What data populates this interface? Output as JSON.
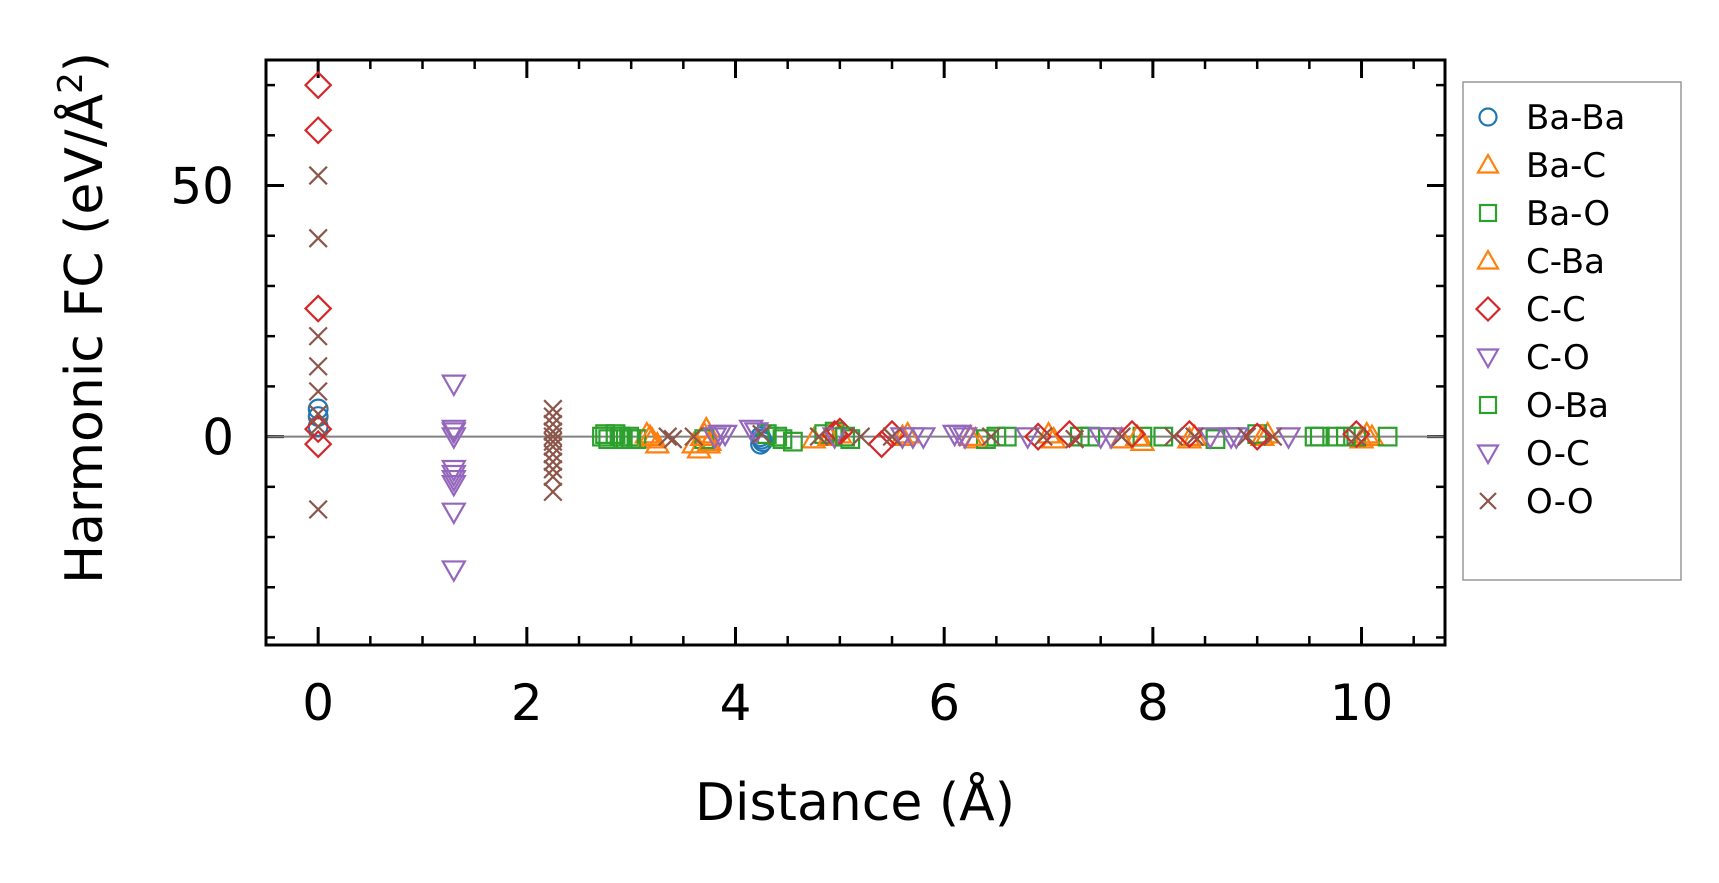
{
  "chart_data": {
    "type": "scatter",
    "xlabel": "Distance (Å)",
    "ylabel_main": "Harmonic FC (eV/Å",
    "ylabel_sup": "2",
    "ylabel_close": ")",
    "xlim": [
      -0.5,
      10.8
    ],
    "ylim": [
      -41.5,
      75
    ],
    "xticks": [
      0,
      2,
      4,
      6,
      8,
      10
    ],
    "xtick_labels": [
      "0",
      "2",
      "4",
      "6",
      "8",
      "10"
    ],
    "yticks": [
      0,
      50
    ],
    "ytick_labels": [
      "0",
      "50"
    ],
    "x_minor_step": 0.5,
    "y_minor_step": 10,
    "zero_line": true,
    "legend_position": "outside-right",
    "series": [
      {
        "name": "Ba-Ba",
        "marker": "circle",
        "color": "#1f77b4",
        "x": [
          0,
          0,
          0,
          4.24,
          4.25,
          4.26,
          4.24
        ],
        "y": [
          5.5,
          4.0,
          2.0,
          0.0,
          -0.5,
          -1.0,
          -1.5
        ]
      },
      {
        "name": "Ba-C",
        "marker": "triangle-up",
        "color": "#ff7f0e",
        "x": [
          3.15,
          3.2,
          3.25,
          3.6,
          3.65,
          3.7,
          3.72,
          3.75,
          4.75,
          5.0,
          5.6,
          6.3,
          7.0,
          7.7,
          7.9,
          8.4,
          9.1,
          10.0,
          10.1
        ],
        "y": [
          0.5,
          -0.5,
          -1.5,
          -1.5,
          -2.5,
          0.5,
          1.5,
          -1.0,
          -0.5,
          0.5,
          0.0,
          -0.5,
          0.5,
          -0.5,
          -1.0,
          0.0,
          0.5,
          -0.5,
          0.0
        ]
      },
      {
        "name": "Ba-O",
        "marker": "square",
        "color": "#2ca02c",
        "x": [
          2.72,
          2.78,
          2.85,
          2.92,
          2.98,
          3.05,
          3.7,
          4.3,
          4.45,
          4.55,
          4.85,
          4.95,
          5.1,
          6.4,
          6.6,
          7.3,
          7.9,
          8.6,
          9.0,
          9.55,
          9.75,
          9.95,
          10.25
        ],
        "y": [
          0.0,
          -0.5,
          0.5,
          -0.5,
          0.0,
          -0.5,
          -0.5,
          0.5,
          -0.5,
          -1.0,
          0.5,
          1.0,
          -0.5,
          -0.5,
          0.0,
          0.0,
          0.0,
          -0.5,
          0.5,
          0.0,
          0.0,
          0.0,
          0.0
        ]
      },
      {
        "name": "C-Ba",
        "marker": "triangle-up",
        "color": "#ff7f0e",
        "x": [
          3.18,
          3.68,
          3.74,
          4.9,
          5.65,
          6.25,
          7.05,
          7.85,
          8.35,
          9.05,
          10.05
        ],
        "y": [
          0.0,
          0.0,
          -1.5,
          0.0,
          0.5,
          0.0,
          -0.5,
          0.0,
          -0.5,
          0.0,
          0.5
        ]
      },
      {
        "name": "C-C",
        "marker": "diamond",
        "color": "#d62728",
        "x": [
          0,
          0,
          0,
          0,
          0,
          4.95,
          5.0,
          5.4,
          5.5,
          6.9,
          7.2,
          7.8,
          8.35,
          9.0,
          9.95
        ],
        "y": [
          70,
          61,
          25.5,
          1.5,
          -1.5,
          0.5,
          1.0,
          -1.5,
          0.5,
          0.0,
          0.5,
          0.5,
          0.5,
          0.0,
          0.5
        ]
      },
      {
        "name": "C-O",
        "marker": "triangle-down",
        "color": "#9467bd",
        "x": [
          1.3,
          1.3,
          1.3,
          1.3,
          1.3,
          1.3,
          1.3,
          3.85,
          4.2,
          4.95,
          5.7,
          6.1,
          6.8,
          7.6,
          8.75,
          9.3
        ],
        "y": [
          10.5,
          1.5,
          0.0,
          -7.5,
          -9.5,
          -15.0,
          -26.5,
          0.5,
          1.0,
          0.0,
          0.0,
          0.5,
          0.0,
          0.0,
          0.0,
          0.0
        ]
      },
      {
        "name": "O-Ba",
        "marker": "square",
        "color": "#2ca02c",
        "x": [
          2.75,
          2.9,
          3.0,
          4.4,
          5.05,
          6.5,
          7.4,
          8.1,
          9.6,
          9.85
        ],
        "y": [
          0.5,
          0.0,
          -0.5,
          0.0,
          0.0,
          0.0,
          0.0,
          0.0,
          0.0,
          0.0
        ]
      },
      {
        "name": "O-C",
        "marker": "triangle-down",
        "color": "#9467bd",
        "x": [
          1.3,
          1.3,
          1.3,
          3.8,
          3.9,
          4.15,
          5.6,
          5.8,
          6.15,
          6.2,
          7.5,
          8.55,
          8.8
        ],
        "y": [
          1.0,
          -6.5,
          -8.5,
          0.0,
          0.5,
          1.5,
          0.0,
          0.0,
          0.5,
          0.0,
          0.0,
          0.0,
          0.0
        ]
      },
      {
        "name": "O-O",
        "marker": "x",
        "color": "#8c564b",
        "x": [
          0,
          0,
          0,
          0,
          0,
          0,
          0,
          0,
          2.25,
          2.25,
          2.25,
          2.25,
          2.25,
          2.25,
          2.25,
          2.25,
          2.25,
          2.25,
          2.25,
          2.25,
          3.35,
          3.4,
          3.6,
          4.25,
          4.8,
          5.2,
          5.5,
          6.45,
          6.95,
          7.25,
          7.7,
          8.2,
          8.4,
          8.9,
          9.15,
          9.95
        ],
        "y": [
          52,
          39.5,
          20,
          14,
          9,
          4.5,
          2.0,
          -14.5,
          5.5,
          4.0,
          2.5,
          1.0,
          0.0,
          -1.0,
          -2.0,
          -3.5,
          -5.0,
          -6.5,
          -8.0,
          -11.0,
          0.0,
          -0.5,
          0.0,
          0.5,
          0.0,
          0.0,
          0.0,
          0.0,
          0.0,
          -0.5,
          0.0,
          0.0,
          0.0,
          0.0,
          0.0,
          0.0
        ]
      }
    ]
  }
}
